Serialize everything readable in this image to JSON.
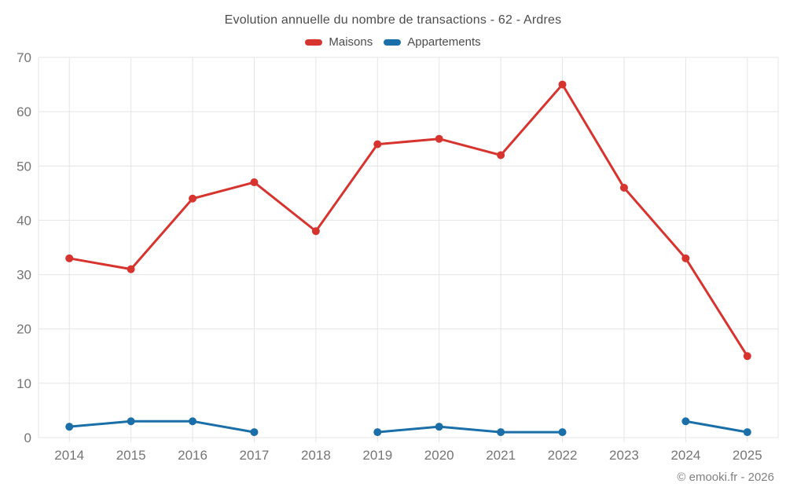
{
  "chart": {
    "title": "Evolution annuelle du nombre de transactions - 62 - Ardres",
    "copyright": "© emooki.fr - 2026"
  },
  "chart_data": {
    "type": "line",
    "x": [
      "2014",
      "2015",
      "2016",
      "2017",
      "2018",
      "2019",
      "2020",
      "2021",
      "2022",
      "2023",
      "2024",
      "2025"
    ],
    "series": [
      {
        "name": "Maisons",
        "color": "#d7342f",
        "values": [
          33,
          31,
          44,
          47,
          38,
          54,
          55,
          52,
          65,
          46,
          33,
          15
        ]
      },
      {
        "name": "Appartements",
        "color": "#1a6fa8",
        "values": [
          2,
          3,
          3,
          1,
          null,
          1,
          2,
          1,
          1,
          null,
          3,
          1
        ]
      }
    ],
    "ylim": [
      0,
      70
    ],
    "ytick_step": 10,
    "grid": true,
    "legend_position": "top",
    "grid_color": "#e4e4e4",
    "tick_label_color": "#757575"
  }
}
